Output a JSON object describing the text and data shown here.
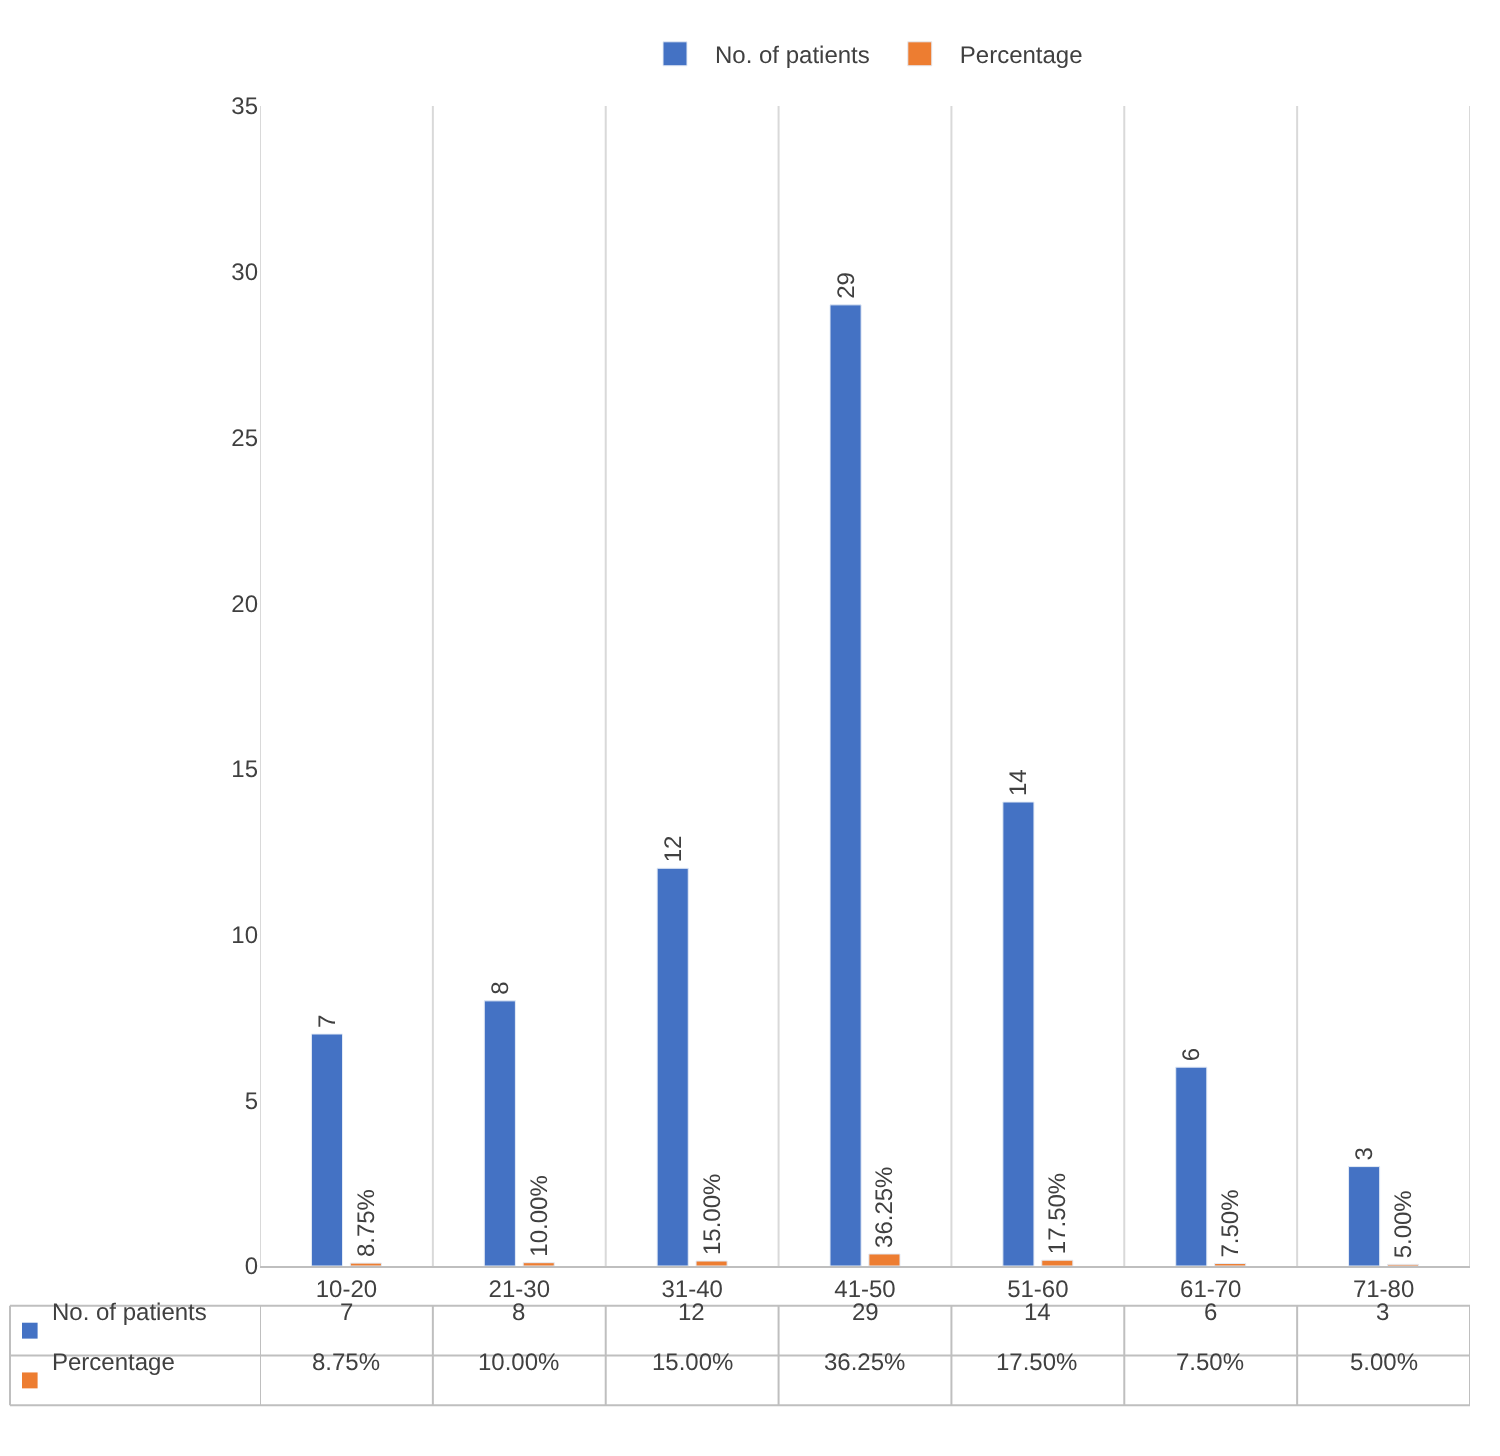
{
  "chart_data": {
    "type": "bar",
    "categories": [
      "10-20",
      "21-30",
      "31-40",
      "41-50",
      "51-60",
      "61-70",
      "71-80"
    ],
    "series": [
      {
        "name": "No. of patients",
        "color": "#4472c4",
        "values": [
          7,
          8,
          12,
          29,
          14,
          6,
          3
        ],
        "value_labels": [
          "7",
          "8",
          "12",
          "29",
          "14",
          "6",
          "3"
        ]
      },
      {
        "name": "Percentage",
        "color": "#ed7d31",
        "values": [
          0.0875,
          0.1,
          0.15,
          0.3625,
          0.175,
          0.075,
          0.05
        ],
        "value_labels": [
          "8.75%",
          "10.00%",
          "15.00%",
          "36.25%",
          "17.50%",
          "7.50%",
          "5.00%"
        ]
      }
    ],
    "ylim": [
      0,
      35
    ],
    "yticks": [
      0,
      5,
      10,
      15,
      20,
      25,
      30,
      35
    ],
    "grid": "x",
    "legend": "top"
  }
}
